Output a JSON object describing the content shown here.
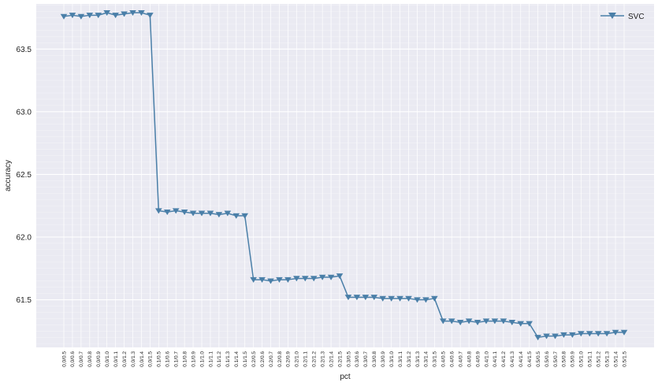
{
  "chart_data": {
    "type": "line",
    "xlabel": "pct",
    "ylabel": "accuracy",
    "ylim": [
      61.12,
      63.86
    ],
    "yticks": [
      61.5,
      62.0,
      62.5,
      63.0,
      63.5
    ],
    "ytick_labels": [
      "61.5",
      "62.0",
      "62.5",
      "63.0",
      "63.5"
    ],
    "grid": true,
    "legend_position": "top-right",
    "categories": [
      "0,0/0.5",
      "0,0/0.6",
      "0,0/0.7",
      "0,0/0.8",
      "0,0/0.9",
      "0,0/1.0",
      "0,0/1.1",
      "0,0/1.2",
      "0,0/1.3",
      "0,0/1.4",
      "0,0/1.5",
      "0.1/0.5",
      "0.1/0.6",
      "0.1/0.7",
      "0.1/0.8",
      "0.1/0.9",
      "0.1/1.0",
      "0.1/1.1",
      "0.1/1.2",
      "0.1/1.3",
      "0.1/1.4",
      "0.1/1.5",
      "0.2/0.5",
      "0.2/0.6",
      "0.2/0.7",
      "0.2/0.8",
      "0.2/0.9",
      "0.2/1.0",
      "0.2/1.1",
      "0.2/1.2",
      "0.2/1.3",
      "0.2/1.4",
      "0.2/1.5",
      "0.3/0.5",
      "0.3/0.6",
      "0.3/0.7",
      "0.3/0.8",
      "0.3/0.9",
      "0.3/1.0",
      "0.3/1.1",
      "0.3/1.2",
      "0.3/1.3",
      "0.3/1.4",
      "0.3/1.5",
      "0.4/0.5",
      "0.4/0.6",
      "0.4/0.7",
      "0.4/0.8",
      "0.4/0.9",
      "0.4/1.0",
      "0.4/1.1",
      "0.4/1.2",
      "0.4/1.3",
      "0.4/1.4",
      "0.4/1.5",
      "0.5/0.5",
      "0.5/0.6",
      "0.5/0.7",
      "0.5/0.8",
      "0.5/0.9",
      "0.5/1.0",
      "0.5/1.1",
      "0.5/1.2",
      "0.5/1.3",
      "0.5/1.4",
      "0.5/1.5"
    ],
    "series": [
      {
        "name": "SVC",
        "color": "#4a7fa8",
        "marker": "triangle-down",
        "values": [
          63.76,
          63.77,
          63.76,
          63.77,
          63.77,
          63.79,
          63.77,
          63.78,
          63.79,
          63.79,
          63.77,
          62.21,
          62.2,
          62.21,
          62.2,
          62.19,
          62.19,
          62.19,
          62.18,
          62.19,
          62.17,
          62.17,
          61.66,
          61.66,
          61.65,
          61.66,
          61.66,
          61.67,
          61.67,
          61.67,
          61.68,
          61.68,
          61.69,
          61.52,
          61.52,
          61.52,
          61.52,
          61.51,
          61.51,
          61.51,
          61.51,
          61.5,
          61.5,
          61.51,
          61.33,
          61.33,
          61.32,
          61.33,
          61.32,
          61.33,
          61.33,
          61.33,
          61.32,
          61.31,
          61.31,
          61.2,
          61.21,
          61.21,
          61.22,
          61.22,
          61.23,
          61.23,
          61.23,
          61.23,
          61.24,
          61.24
        ]
      }
    ]
  }
}
